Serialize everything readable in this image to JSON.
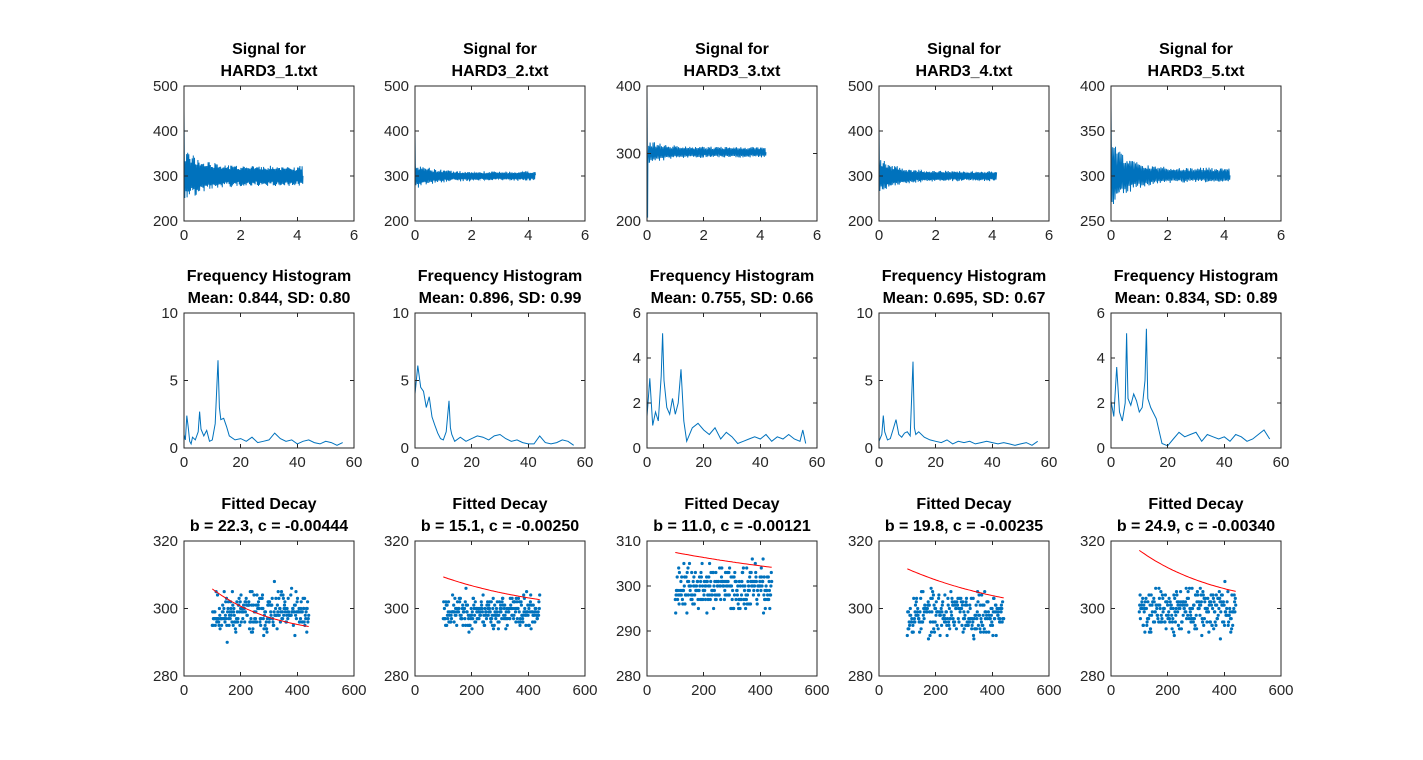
{
  "colors": {
    "signal": "#0072BD",
    "fit": "#FF0000",
    "axis": "#262626",
    "background": "#FFFFFF"
  },
  "chart_data": [
    {
      "type": "line",
      "row": 0,
      "col": 0,
      "title_lines": [
        "Signal for",
        "HARD3_1.txt"
      ],
      "xlim": [
        0,
        6
      ],
      "ylim": [
        200,
        500
      ],
      "xticks": [
        "0",
        "2",
        "4",
        "6"
      ],
      "yticks": [
        "200",
        "300",
        "400",
        "500"
      ],
      "x_end": 4.2,
      "series": [
        {
          "kind": "decay-oscillation",
          "start": 450,
          "baseline": 300,
          "amplitude": 60,
          "decay_to": 0.35,
          "period": 0.04
        }
      ]
    },
    {
      "type": "line",
      "row": 0,
      "col": 1,
      "title_lines": [
        "Signal for",
        "HARD3_2.txt"
      ],
      "xlim": [
        0,
        6
      ],
      "ylim": [
        200,
        500
      ],
      "xticks": [
        "0",
        "2",
        "4",
        "6"
      ],
      "yticks": [
        "200",
        "300",
        "400",
        "500"
      ],
      "x_end": 4.25,
      "series": [
        {
          "kind": "decay-oscillation",
          "start": 400,
          "baseline": 300,
          "amplitude": 30,
          "decay_to": 0.35,
          "period": 0.045
        }
      ]
    },
    {
      "type": "line",
      "row": 0,
      "col": 2,
      "title_lines": [
        "Signal for",
        "HARD3_3.txt"
      ],
      "xlim": [
        0,
        6
      ],
      "ylim": [
        200,
        400
      ],
      "xticks": [
        "0",
        "2",
        "4",
        "6"
      ],
      "yticks": [
        "200",
        "300",
        "400"
      ],
      "x_end": 4.2,
      "series": [
        {
          "kind": "decay-oscillation",
          "start": 400,
          "baseline": 302,
          "amplitude": 18,
          "decay_to": 0.45,
          "period": 0.05,
          "dip": 205
        }
      ]
    },
    {
      "type": "line",
      "row": 0,
      "col": 3,
      "title_lines": [
        "Signal for",
        "HARD3_4.txt"
      ],
      "xlim": [
        0,
        6
      ],
      "ylim": [
        200,
        500
      ],
      "xticks": [
        "0",
        "2",
        "4",
        "6"
      ],
      "yticks": [
        "200",
        "300",
        "400",
        "500"
      ],
      "x_end": 4.15,
      "series": [
        {
          "kind": "decay-oscillation",
          "start": 420,
          "baseline": 300,
          "amplitude": 45,
          "decay_to": 0.25,
          "period": 0.045
        }
      ]
    },
    {
      "type": "line",
      "row": 0,
      "col": 4,
      "title_lines": [
        "Signal for",
        "HARD3_5.txt"
      ],
      "xlim": [
        0,
        6
      ],
      "ylim": [
        250,
        400
      ],
      "xticks": [
        "0",
        "2",
        "4",
        "6"
      ],
      "yticks": [
        "250",
        "300",
        "350",
        "400"
      ],
      "x_end": 4.2,
      "series": [
        {
          "kind": "decay-oscillation",
          "start": 380,
          "baseline": 301,
          "amplitude": 40,
          "decay_to": 0.2,
          "period": 0.05
        }
      ]
    },
    {
      "type": "line",
      "row": 1,
      "col": 0,
      "title_lines": [
        "Frequency Histogram",
        "Mean: 0.844, SD: 0.80"
      ],
      "xlim": [
        0,
        60
      ],
      "ylim": [
        0,
        10
      ],
      "xticks": [
        "0",
        "20",
        "40",
        "60"
      ],
      "yticks": [
        "0",
        "5",
        "10"
      ],
      "x": [
        0,
        0.5,
        1,
        1.5,
        2,
        2.5,
        3,
        4,
        5,
        5.5,
        6,
        7,
        8,
        9,
        10,
        11,
        12,
        12.5,
        13,
        14,
        15,
        16,
        18,
        20,
        22,
        24,
        26,
        28,
        30,
        32,
        34,
        36,
        38,
        40,
        42,
        44,
        46,
        48,
        50,
        52,
        54,
        56
      ],
      "values": [
        1.0,
        0.6,
        2.4,
        1.5,
        0.5,
        0.3,
        0.8,
        0.6,
        1.2,
        2.7,
        1.4,
        0.9,
        1.3,
        0.5,
        0.6,
        1.8,
        6.5,
        3.0,
        2.1,
        2.2,
        1.6,
        0.9,
        0.6,
        0.7,
        0.5,
        0.8,
        0.4,
        0.5,
        0.6,
        1.1,
        0.7,
        0.5,
        0.6,
        0.3,
        0.5,
        0.6,
        0.4,
        0.3,
        0.5,
        0.4,
        0.2,
        0.4
      ]
    },
    {
      "type": "line",
      "row": 1,
      "col": 1,
      "title_lines": [
        "Frequency Histogram",
        "Mean: 0.896, SD: 0.99"
      ],
      "xlim": [
        0,
        60
      ],
      "ylim": [
        0,
        10
      ],
      "xticks": [
        "0",
        "20",
        "40",
        "60"
      ],
      "yticks": [
        "0",
        "5",
        "10"
      ],
      "x": [
        0,
        1,
        2,
        3,
        4,
        5,
        6,
        7,
        8,
        9,
        10,
        11,
        12,
        12.5,
        13,
        14,
        16,
        18,
        20,
        22,
        24,
        26,
        28,
        30,
        32,
        34,
        36,
        38,
        40,
        42,
        44,
        46,
        48,
        50,
        52,
        54,
        56
      ],
      "values": [
        4.0,
        6.1,
        4.5,
        4.2,
        3.0,
        3.8,
        2.3,
        1.7,
        1.1,
        0.7,
        0.6,
        1.2,
        3.5,
        1.5,
        1.0,
        0.5,
        0.8,
        0.5,
        0.7,
        0.9,
        0.8,
        0.6,
        0.9,
        1.0,
        0.7,
        0.5,
        0.6,
        0.4,
        0.3,
        0.3,
        0.9,
        0.4,
        0.3,
        0.4,
        0.6,
        0.5,
        0.2
      ]
    },
    {
      "type": "line",
      "row": 1,
      "col": 2,
      "title_lines": [
        "Frequency Histogram",
        "Mean: 0.755, SD: 0.66"
      ],
      "xlim": [
        0,
        60
      ],
      "ylim": [
        0,
        6
      ],
      "xticks": [
        "0",
        "20",
        "40",
        "60"
      ],
      "yticks": [
        "0",
        "2",
        "4",
        "6"
      ],
      "x": [
        0,
        1,
        2,
        3,
        4,
        5,
        5.5,
        6,
        7,
        8,
        9,
        10,
        11,
        12,
        13,
        14,
        16,
        18,
        20,
        22,
        24,
        26,
        28,
        30,
        32,
        34,
        36,
        38,
        40,
        42,
        44,
        46,
        48,
        50,
        52,
        54,
        55,
        56
      ],
      "values": [
        1.4,
        3.1,
        1.0,
        1.6,
        1.2,
        3.2,
        5.1,
        3.0,
        1.8,
        1.5,
        2.2,
        1.5,
        2.0,
        3.5,
        1.2,
        0.3,
        0.9,
        1.1,
        0.8,
        0.6,
        0.9,
        0.4,
        0.7,
        0.5,
        0.2,
        0.3,
        0.4,
        0.5,
        0.4,
        0.6,
        0.3,
        0.5,
        0.4,
        0.6,
        0.4,
        0.3,
        0.8,
        0.2
      ]
    },
    {
      "type": "line",
      "row": 1,
      "col": 3,
      "title_lines": [
        "Frequency Histogram",
        "Mean: 0.695, SD: 0.67"
      ],
      "xlim": [
        0,
        60
      ],
      "ylim": [
        0,
        10
      ],
      "xticks": [
        "0",
        "20",
        "40",
        "60"
      ],
      "yticks": [
        "0",
        "5",
        "10"
      ],
      "x": [
        0,
        1,
        1.5,
        2,
        3,
        4,
        5,
        6,
        7,
        8,
        9,
        10,
        11,
        12,
        12.5,
        13,
        14,
        16,
        18,
        20,
        22,
        24,
        26,
        28,
        30,
        32,
        34,
        36,
        38,
        40,
        42,
        44,
        46,
        48,
        50,
        52,
        54,
        56
      ],
      "values": [
        0.5,
        1.0,
        2.4,
        1.2,
        0.6,
        0.7,
        1.4,
        2.1,
        1.0,
        0.8,
        1.1,
        1.2,
        0.9,
        6.4,
        1.5,
        1.0,
        1.2,
        0.8,
        0.6,
        0.5,
        0.4,
        0.6,
        0.3,
        0.5,
        0.4,
        0.5,
        0.3,
        0.4,
        0.5,
        0.4,
        0.3,
        0.4,
        0.3,
        0.2,
        0.3,
        0.4,
        0.2,
        0.5
      ]
    },
    {
      "type": "line",
      "row": 1,
      "col": 4,
      "title_lines": [
        "Frequency Histogram",
        "Mean: 0.834, SD: 0.89"
      ],
      "xlim": [
        0,
        60
      ],
      "ylim": [
        0,
        6
      ],
      "xticks": [
        "0",
        "20",
        "40",
        "60"
      ],
      "yticks": [
        "0",
        "2",
        "4",
        "6"
      ],
      "x": [
        0,
        1,
        2,
        3,
        4,
        5,
        5.5,
        6,
        7,
        8,
        9,
        10,
        11,
        12,
        12.5,
        13,
        14,
        16,
        18,
        20,
        22,
        24,
        26,
        28,
        30,
        32,
        34,
        36,
        38,
        40,
        42,
        44,
        46,
        48,
        50,
        52,
        54,
        56
      ],
      "values": [
        2.1,
        1.4,
        3.6,
        1.6,
        1.2,
        2.0,
        5.1,
        2.2,
        1.9,
        2.4,
        2.1,
        1.6,
        1.8,
        3.0,
        5.3,
        2.2,
        1.8,
        1.3,
        0.2,
        0.1,
        0.4,
        0.7,
        0.5,
        0.6,
        0.7,
        0.3,
        0.6,
        0.5,
        0.4,
        0.5,
        0.3,
        0.6,
        0.5,
        0.3,
        0.4,
        0.6,
        0.8,
        0.4
      ]
    },
    {
      "type": "scatter",
      "row": 2,
      "col": 0,
      "title_lines": [
        "Fitted Decay",
        "b = 22.3, c = -0.00444"
      ],
      "xlim": [
        0,
        600
      ],
      "ylim": [
        280,
        320
      ],
      "xticks": [
        "0",
        "200",
        "400",
        "600"
      ],
      "yticks": [
        "280",
        "300",
        "320"
      ],
      "scatter": {
        "x_start": 100,
        "x_end": 440,
        "center": 298.5,
        "spread": 4.5,
        "seed": 11
      },
      "fit": {
        "b": 22.3,
        "c": -0.00444,
        "offset": 291.5,
        "x_start": 100,
        "x_end": 440
      }
    },
    {
      "type": "scatter",
      "row": 2,
      "col": 1,
      "title_lines": [
        "Fitted Decay",
        "b = 15.1, c = -0.00250"
      ],
      "xlim": [
        0,
        600
      ],
      "ylim": [
        280,
        320
      ],
      "xticks": [
        "0",
        "200",
        "400",
        "600"
      ],
      "yticks": [
        "280",
        "300",
        "320"
      ],
      "scatter": {
        "x_start": 100,
        "x_end": 440,
        "center": 299,
        "spread": 3.5,
        "seed": 23
      },
      "fit": {
        "b": 15.1,
        "c": -0.0025,
        "offset": 297.6,
        "x_start": 100,
        "x_end": 440
      }
    },
    {
      "type": "scatter",
      "row": 2,
      "col": 2,
      "title_lines": [
        "Fitted Decay",
        "b = 11.0, c = -0.00121"
      ],
      "xlim": [
        0,
        600
      ],
      "ylim": [
        280,
        310
      ],
      "xticks": [
        "0",
        "200",
        "400",
        "600"
      ],
      "yticks": [
        "280",
        "290",
        "300",
        "310"
      ],
      "scatter": {
        "x_start": 100,
        "x_end": 440,
        "center": 299.5,
        "spread": 3.5,
        "seed": 37
      },
      "fit": {
        "b": 11.0,
        "c": -0.00121,
        "offset": 297.7,
        "x_start": 100,
        "x_end": 440
      }
    },
    {
      "type": "scatter",
      "row": 2,
      "col": 3,
      "title_lines": [
        "Fitted Decay",
        "b = 19.8, c = -0.00235"
      ],
      "xlim": [
        0,
        600
      ],
      "ylim": [
        280,
        320
      ],
      "xticks": [
        "0",
        "200",
        "400",
        "600"
      ],
      "yticks": [
        "280",
        "300",
        "320"
      ],
      "scatter": {
        "x_start": 100,
        "x_end": 440,
        "center": 298.5,
        "spread": 4.5,
        "seed": 53
      },
      "fit": {
        "b": 19.8,
        "c": -0.00235,
        "offset": 296.1,
        "x_start": 100,
        "x_end": 440
      }
    },
    {
      "type": "scatter",
      "row": 2,
      "col": 4,
      "title_lines": [
        "Fitted Decay",
        "b = 24.9, c = -0.00340"
      ],
      "xlim": [
        0,
        600
      ],
      "ylim": [
        280,
        320
      ],
      "xticks": [
        "0",
        "200",
        "400",
        "600"
      ],
      "yticks": [
        "280",
        "300",
        "320"
      ],
      "scatter": {
        "x_start": 100,
        "x_end": 440,
        "center": 299.5,
        "spread": 4.5,
        "seed": 71
      },
      "fit": {
        "b": 24.9,
        "c": -0.0034,
        "offset": 299.5,
        "x_start": 100,
        "x_end": 440
      }
    }
  ]
}
